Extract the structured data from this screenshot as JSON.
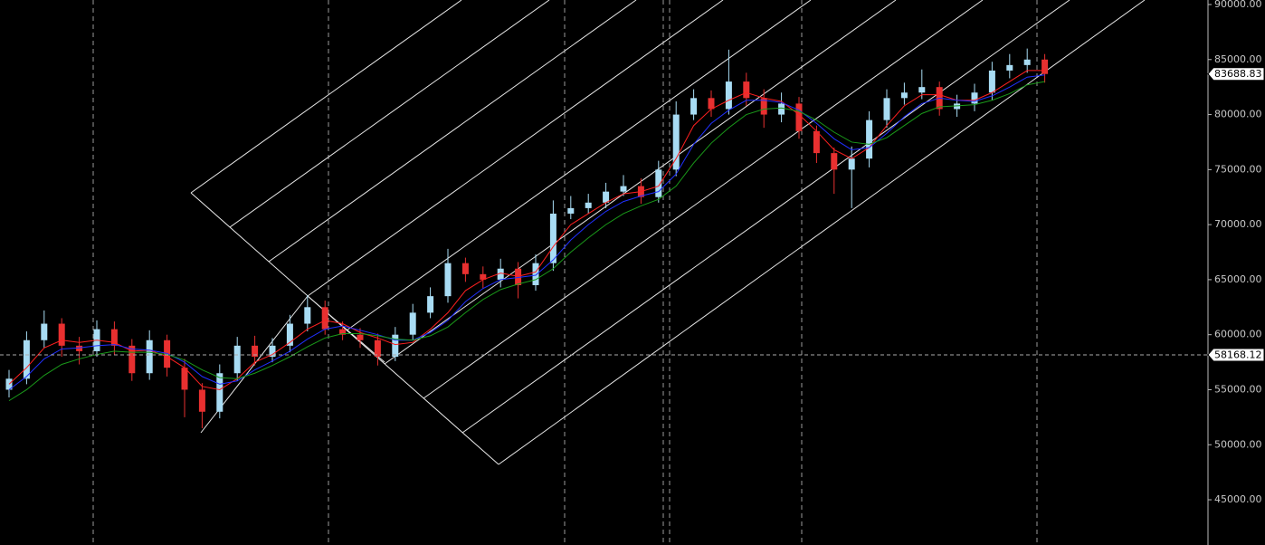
{
  "chart_data": {
    "type": "candlestick",
    "up_color": "#a8dcf4",
    "down_color": "#e83030",
    "open": [
      55000,
      56000,
      59500,
      61000,
      59000,
      58500,
      60500,
      59000,
      56500,
      59500,
      57000,
      55000,
      53000,
      56500,
      59000,
      58000,
      59000,
      61000,
      62500,
      60500,
      60000,
      59500,
      58000,
      60000,
      62000,
      63500,
      66500,
      65500,
      65000,
      66000,
      64500,
      66500,
      71000,
      71500,
      72000,
      73000,
      73500,
      72500,
      75000,
      80000,
      81500,
      80500,
      83000,
      81500,
      80000,
      81000,
      78500,
      76500,
      75000,
      76000,
      79500,
      81500,
      82000,
      82500,
      80500,
      81000,
      82000,
      84000,
      84500,
      85000
    ],
    "high": [
      56800,
      60300,
      62200,
      61500,
      59800,
      61300,
      61200,
      59600,
      60400,
      60000,
      57800,
      55600,
      57300,
      59800,
      59900,
      59700,
      61800,
      63600,
      63100,
      61200,
      60600,
      60100,
      60700,
      62800,
      64300,
      67800,
      67000,
      66200,
      66900,
      66600,
      67300,
      72200,
      72600,
      72800,
      73800,
      74500,
      74200,
      75800,
      81200,
      82300,
      82200,
      85900,
      83800,
      82300,
      82000,
      81600,
      79000,
      77000,
      77100,
      80300,
      82300,
      82900,
      84100,
      83000,
      81800,
      82800,
      84800,
      85500,
      86000,
      85500
    ],
    "low": [
      54300,
      55500,
      58800,
      58000,
      57300,
      58000,
      58200,
      55800,
      55900,
      56200,
      52500,
      51500,
      52400,
      55800,
      57200,
      57500,
      58400,
      60300,
      60000,
      59500,
      58800,
      57200,
      57600,
      59500,
      61500,
      62900,
      64800,
      64200,
      64300,
      63300,
      64000,
      65800,
      70500,
      71000,
      71500,
      72600,
      71900,
      72000,
      74400,
      79500,
      79800,
      80000,
      80800,
      78800,
      79300,
      77800,
      75600,
      72800,
      71500,
      75200,
      78800,
      80900,
      81400,
      79900,
      79800,
      80300,
      81300,
      83300,
      83800,
      82900
    ],
    "close": [
      56000,
      59500,
      61000,
      59000,
      58500,
      60500,
      59000,
      56500,
      59500,
      57000,
      55000,
      53000,
      56500,
      59000,
      58000,
      59000,
      61000,
      62500,
      60500,
      60000,
      59500,
      58000,
      60000,
      62000,
      63500,
      66500,
      65500,
      65000,
      66000,
      64500,
      66500,
      71000,
      71500,
      72000,
      73000,
      73500,
      72500,
      75000,
      80000,
      81500,
      80500,
      83000,
      81500,
      80000,
      81000,
      78500,
      76500,
      75000,
      76000,
      79500,
      81500,
      82000,
      82500,
      80500,
      81000,
      82000,
      84000,
      84500,
      85000,
      83688.83
    ],
    "series": [
      {
        "color": "#ff2020",
        "values": [
          55500,
          57000,
          58800,
          59500,
          59300,
          59500,
          59300,
          58500,
          58600,
          58000,
          57000,
          55300,
          55000,
          56000,
          57500,
          58200,
          59300,
          60500,
          61300,
          61000,
          60200,
          59700,
          59100,
          59300,
          60500,
          62000,
          64000,
          65000,
          65600,
          65300,
          65700,
          68000,
          70000,
          71000,
          72000,
          72800,
          73000,
          73500,
          76000,
          79000,
          80500,
          81300,
          82000,
          81500,
          81200,
          80000,
          78500,
          76800,
          76000,
          77000,
          79000,
          80800,
          81800,
          81800,
          81300,
          81300,
          82000,
          83000,
          84000,
          84000
        ]
      },
      {
        "color": "#2030ff",
        "values": [
          55000,
          56200,
          57800,
          58700,
          58800,
          59000,
          59100,
          58700,
          58600,
          58300,
          57500,
          56200,
          55500,
          55800,
          56800,
          57600,
          58500,
          59600,
          60500,
          60800,
          60400,
          60000,
          59500,
          59500,
          60200,
          61300,
          63000,
          64200,
          65000,
          65200,
          65400,
          66800,
          68600,
          70000,
          71200,
          72100,
          72600,
          73000,
          74600,
          77300,
          79200,
          80400,
          81300,
          81300,
          81100,
          80400,
          79200,
          77800,
          76800,
          77000,
          78300,
          79800,
          81000,
          81500,
          81300,
          81200,
          81700,
          82500,
          83400,
          83600
        ]
      },
      {
        "color": "#1a9a1a",
        "values": [
          54000,
          55000,
          56300,
          57300,
          57800,
          58200,
          58500,
          58400,
          58400,
          58200,
          57700,
          56800,
          56100,
          56000,
          56500,
          57200,
          58000,
          58900,
          59700,
          60100,
          60100,
          59900,
          59600,
          59500,
          59900,
          60700,
          62000,
          63200,
          64100,
          64600,
          65000,
          66000,
          67500,
          68800,
          70000,
          71000,
          71700,
          72300,
          73500,
          75600,
          77400,
          78800,
          80000,
          80500,
          80600,
          80300,
          79500,
          78400,
          77500,
          77300,
          77900,
          79000,
          80100,
          80700,
          80800,
          80900,
          81300,
          81900,
          82700,
          83000
        ]
      }
    ],
    "ylim": [
      40890,
      90411
    ],
    "yticks": [
      {
        "value": 45000,
        "label": "45000.00"
      },
      {
        "value": 50000,
        "label": "50000.00"
      },
      {
        "value": 55000,
        "label": "55000.00"
      },
      {
        "value": 60000,
        "label": "60000.00"
      },
      {
        "value": 65000,
        "label": "65000.00"
      },
      {
        "value": 70000,
        "label": "70000.00"
      },
      {
        "value": 75000,
        "label": "75000.00"
      },
      {
        "value": 80000,
        "label": "80000.00"
      },
      {
        "value": 85000,
        "label": "85000.00"
      },
      {
        "value": 90000,
        "label": "90000.00"
      }
    ],
    "crosshair_value": 58168.12
  }
}
